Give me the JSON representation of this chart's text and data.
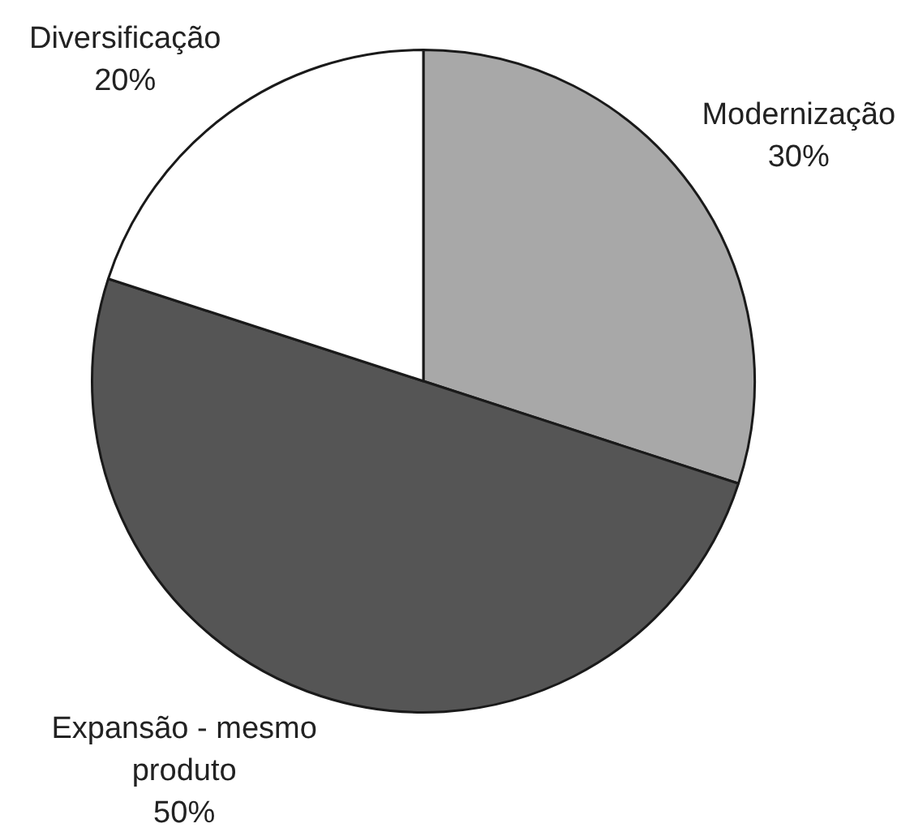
{
  "chart_data": {
    "type": "pie",
    "categories": [
      "Modernização",
      "Expansão - mesmo produto",
      "Diversificação"
    ],
    "values": [
      30,
      50,
      20
    ],
    "colors": [
      "#a8a8a8",
      "#555555",
      "#ffffff"
    ],
    "value_labels": [
      "30%",
      "50%",
      "20%"
    ]
  }
}
